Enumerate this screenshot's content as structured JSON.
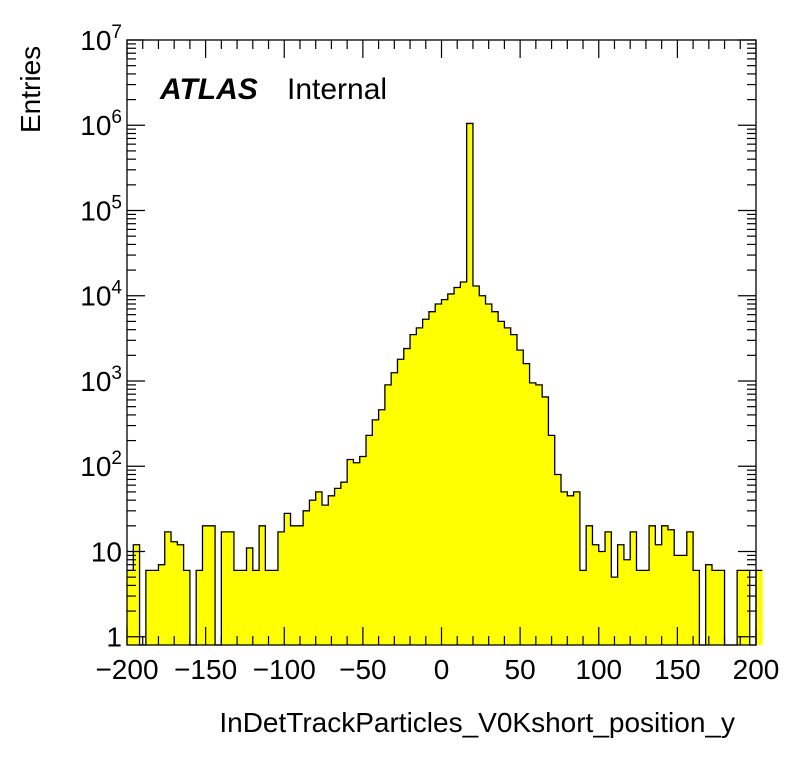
{
  "chart_data": {
    "type": "histogram",
    "title": "",
    "xlabel": "InDetTrackParticles_V0Kshort_position_y",
    "ylabel": "Entries",
    "xlim": [
      -200,
      200
    ],
    "ylim": [
      0.8,
      10000000
    ],
    "yscale": "log",
    "bin_width": 4,
    "fill_color": "#ffff00",
    "line_color": "#000000",
    "x_tick_labels": [
      "−200",
      "−150",
      "−100",
      "−50",
      "0",
      "50",
      "100",
      "150",
      "200"
    ],
    "y_tick_labels": [
      {
        "base": "",
        "exp": "",
        "text": "1"
      },
      {
        "base": "",
        "exp": "",
        "text": "10"
      },
      {
        "base": "10",
        "exp": "2",
        "text": ""
      },
      {
        "base": "10",
        "exp": "3",
        "text": ""
      },
      {
        "base": "10",
        "exp": "4",
        "text": ""
      },
      {
        "base": "10",
        "exp": "5",
        "text": ""
      },
      {
        "base": "10",
        "exp": "6",
        "text": ""
      },
      {
        "base": "10",
        "exp": "7",
        "text": ""
      }
    ],
    "bin_edges_start": -200,
    "values": [
      6,
      12,
      0,
      6,
      6,
      7,
      17,
      13,
      12,
      6,
      0,
      6,
      20,
      20,
      0,
      17,
      17,
      6,
      6,
      11,
      6,
      20,
      6,
      6,
      17,
      28,
      20,
      20,
      30,
      40,
      50,
      35,
      45,
      55,
      65,
      120,
      110,
      130,
      230,
      350,
      460,
      900,
      1250,
      1800,
      2400,
      3500,
      4200,
      5300,
      6500,
      8000,
      9000,
      10500,
      12500,
      14500,
      1050000,
      13000,
      10000,
      8000,
      6500,
      5000,
      4200,
      3500,
      2300,
      1600,
      950,
      900,
      650,
      230,
      80,
      50,
      45,
      50,
      6,
      20,
      12,
      10,
      17,
      5,
      12,
      8,
      17,
      6,
      6,
      20,
      12,
      20,
      18,
      9,
      9,
      17,
      6,
      0,
      7,
      6,
      6,
      0,
      0,
      6,
      6,
      0,
      6
    ]
  },
  "labels": {
    "atlas": "ATLAS",
    "internal": "Internal"
  }
}
